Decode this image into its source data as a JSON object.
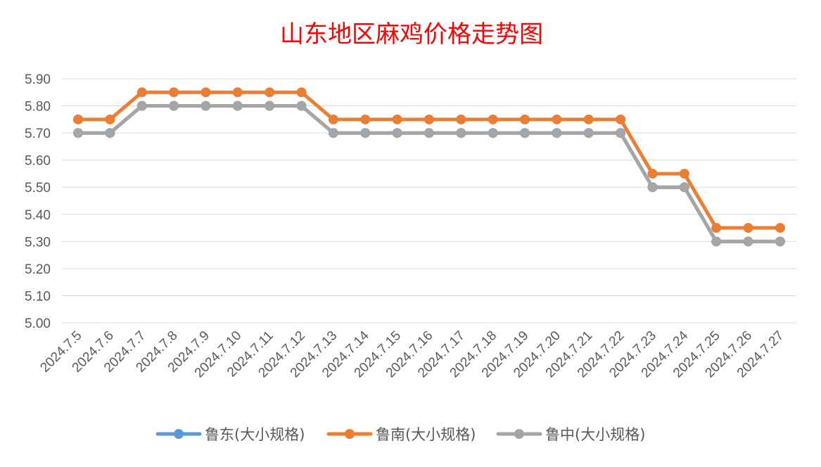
{
  "chart_data": {
    "type": "line",
    "title": "山东地区麻鸡价格走势图",
    "xlabel": "",
    "ylabel": "",
    "ylim": [
      5.0,
      5.9
    ],
    "yticks": [
      "5.00",
      "5.10",
      "5.20",
      "5.30",
      "5.40",
      "5.50",
      "5.60",
      "5.70",
      "5.80",
      "5.90"
    ],
    "grid": true,
    "legend_position": "bottom",
    "categories": [
      "2024.7.5",
      "2024.7.6",
      "2024.7.7",
      "2024.7.8",
      "2024.7.9",
      "2024.7.10",
      "2024.7.11",
      "2024.7.12",
      "2024.7.13",
      "2024.7.14",
      "2024.7.15",
      "2024.7.16",
      "2024.7.17",
      "2024.7.18",
      "2024.7.19",
      "2024.7.20",
      "2024.7.21",
      "2024.7.22",
      "2024.7.23",
      "2024.7.24",
      "2024.7.25",
      "2024.7.26",
      "2024.7.27"
    ],
    "series": [
      {
        "name": "鲁东(大小规格)",
        "color": "#5b9bd5",
        "values": [
          5.7,
          5.7,
          5.8,
          5.8,
          5.8,
          5.8,
          5.8,
          5.8,
          5.7,
          5.7,
          5.7,
          5.7,
          5.7,
          5.7,
          5.7,
          5.7,
          5.7,
          5.7,
          5.5,
          5.5,
          5.3,
          5.3,
          5.3
        ]
      },
      {
        "name": "鲁南(大小规格)",
        "color": "#ed7d31",
        "values": [
          5.75,
          5.75,
          5.85,
          5.85,
          5.85,
          5.85,
          5.85,
          5.85,
          5.75,
          5.75,
          5.75,
          5.75,
          5.75,
          5.75,
          5.75,
          5.75,
          5.75,
          5.75,
          5.55,
          5.55,
          5.35,
          5.35,
          5.35
        ]
      },
      {
        "name": "鲁中(大小规格)",
        "color": "#a5a5a5",
        "values": [
          5.7,
          5.7,
          5.8,
          5.8,
          5.8,
          5.8,
          5.8,
          5.8,
          5.7,
          5.7,
          5.7,
          5.7,
          5.7,
          5.7,
          5.7,
          5.7,
          5.7,
          5.7,
          5.5,
          5.5,
          5.3,
          5.3,
          5.3
        ]
      }
    ]
  }
}
